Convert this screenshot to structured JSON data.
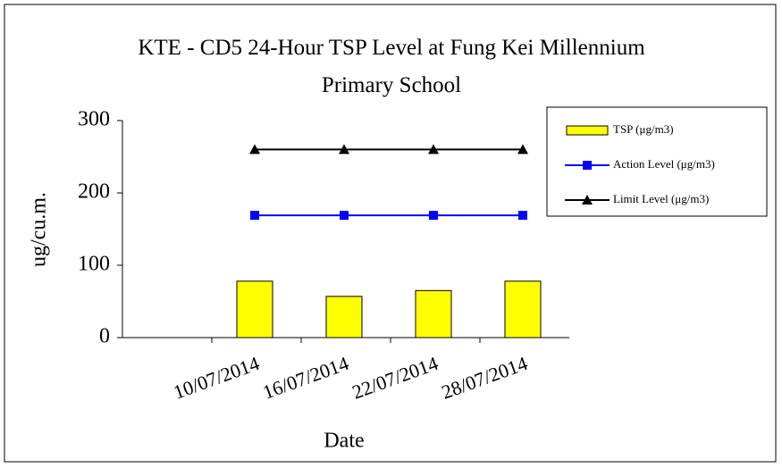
{
  "chart_data": {
    "type": "bar",
    "title": "KTE - CD5 24-Hour TSP Level at Fung Kei Millennium Primary School",
    "x_label": "Date",
    "y_label": "ug/cu.m.",
    "categories": [
      null,
      "10/07/2014",
      "16/07/2014",
      "22/07/2014",
      "28/07/2014"
    ],
    "series": [
      {
        "name": "TSP (μg/m3)",
        "type": "bar",
        "color": "#ffff00",
        "values": [
          null,
          78,
          57,
          65,
          78
        ]
      },
      {
        "name": "Action Level (μg/m3)",
        "type": "line",
        "marker": "square",
        "color": "#0000ff",
        "values": [
          null,
          169,
          169,
          169,
          169
        ]
      },
      {
        "name": "Limit Level (μg/m3)",
        "type": "line",
        "marker": "triangle",
        "color": "#000000",
        "values": [
          null,
          260,
          260,
          260,
          260
        ]
      }
    ],
    "ylim": [
      0,
      300
    ],
    "yticks": [
      0,
      100,
      200,
      300
    ],
    "legend": "right"
  }
}
